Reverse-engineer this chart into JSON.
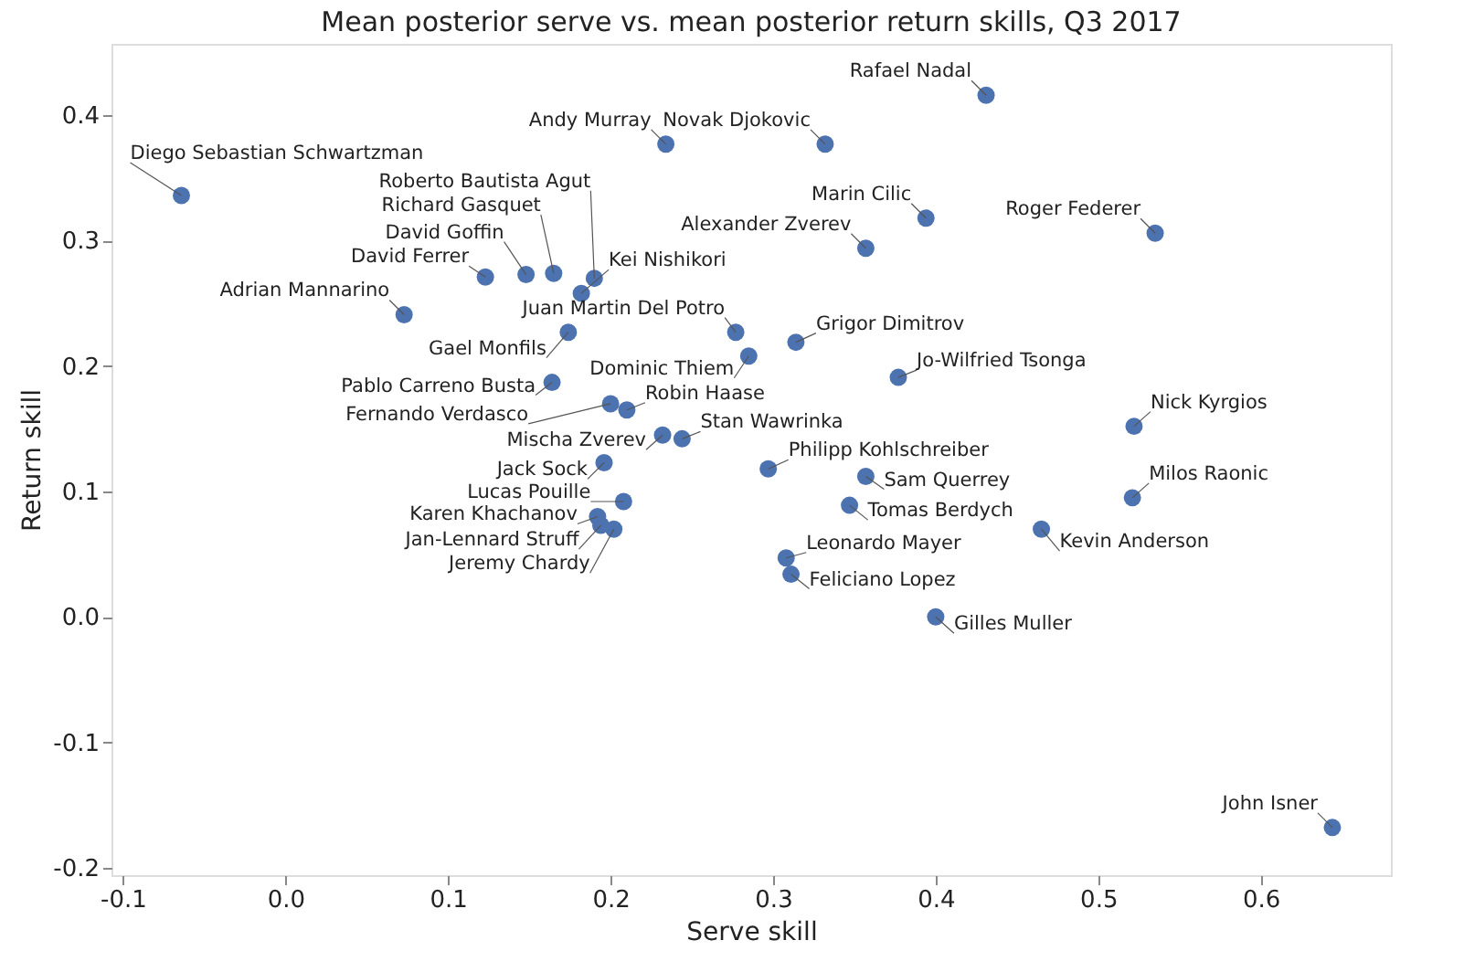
{
  "chart_data": {
    "type": "scatter",
    "title": "Mean posterior serve vs. mean posterior return skills, Q3 2017",
    "xlabel": "Serve skill",
    "ylabel": "Return skill",
    "xlim": [
      -0.107,
      0.68
    ],
    "ylim": [
      -0.206,
      0.457
    ],
    "xticks": [
      -0.1,
      {
        "value": 0,
        "label": "0.0"
      },
      0.1,
      0.2,
      0.3,
      0.4,
      0.5,
      0.6
    ],
    "yticks": [
      -0.2,
      -0.1,
      {
        "value": 0,
        "label": "0.0"
      },
      0.1,
      0.2,
      0.3,
      0.4
    ],
    "grid": false,
    "marker": "circle",
    "series": [
      {
        "color": "#4c72b0",
        "x": [
          0.431,
          0.234,
          0.332,
          -0.064,
          0.394,
          0.535,
          0.357,
          0.073,
          0.174,
          0.377,
          0.522,
          0.521,
          0.465,
          0.357,
          0.347,
          0.644,
          0.4,
          0.308,
          0.311,
          0.123,
          0.148,
          0.165,
          0.19,
          0.182,
          0.277,
          0.314,
          0.285,
          0.164,
          0.2,
          0.21,
          0.297,
          0.232,
          0.196,
          0.244,
          0.192,
          0.202,
          0.208,
          0.194
        ],
        "values": [
          0.416,
          0.377,
          0.377,
          0.336,
          0.318,
          0.306,
          0.294,
          0.241,
          0.227,
          0.191,
          0.152,
          0.095,
          0.07,
          0.112,
          0.089,
          -0.168,
          0.0,
          0.047,
          0.034,
          0.271,
          0.273,
          0.274,
          0.27,
          0.258,
          0.227,
          0.219,
          0.208,
          0.187,
          0.17,
          0.165,
          0.118,
          0.145,
          0.123,
          0.142,
          0.08,
          0.07,
          0.092,
          0.073
        ]
      }
    ],
    "annotations": [
      {
        "text": "Rafael Nadal",
        "x": 0.431,
        "y": 0.416
      },
      {
        "text": "Andy Murray",
        "x": 0.234,
        "y": 0.377
      },
      {
        "text": "Novak Djokovic",
        "x": 0.332,
        "y": 0.377
      },
      {
        "text": "Diego Sebastian Schwartzman",
        "x": -0.064,
        "y": 0.336
      },
      {
        "text": "Marin Cilic",
        "x": 0.394,
        "y": 0.318
      },
      {
        "text": "Roger Federer",
        "x": 0.535,
        "y": 0.306
      },
      {
        "text": "Alexander Zverev",
        "x": 0.357,
        "y": 0.294
      },
      {
        "text": "Adrian Mannarino",
        "x": 0.073,
        "y": 0.241
      },
      {
        "text": "Gael Monfils",
        "x": 0.174,
        "y": 0.227
      },
      {
        "text": "Jo-Wilfried Tsonga",
        "x": 0.377,
        "y": 0.191
      },
      {
        "text": "Nick Kyrgios",
        "x": 0.522,
        "y": 0.152
      },
      {
        "text": "Milos Raonic",
        "x": 0.521,
        "y": 0.095
      },
      {
        "text": "Kevin Anderson",
        "x": 0.465,
        "y": 0.07
      },
      {
        "text": "Sam Querrey",
        "x": 0.357,
        "y": 0.112
      },
      {
        "text": "Tomas Berdych",
        "x": 0.347,
        "y": 0.089
      },
      {
        "text": "John Isner",
        "x": 0.644,
        "y": -0.168
      },
      {
        "text": "Gilles Muller",
        "x": 0.4,
        "y": 0.0
      },
      {
        "text": "Leonardo Mayer",
        "x": 0.308,
        "y": 0.047
      },
      {
        "text": "Feliciano Lopez",
        "x": 0.311,
        "y": 0.034
      },
      {
        "text": "David Ferrer",
        "x": 0.123,
        "y": 0.271
      },
      {
        "text": "David Goffin",
        "x": 0.148,
        "y": 0.273
      },
      {
        "text": "Richard Gasquet",
        "x": 0.165,
        "y": 0.274
      },
      {
        "text": "Roberto Bautista Agut",
        "x": 0.19,
        "y": 0.27
      },
      {
        "text": "Kei Nishikori",
        "x": 0.182,
        "y": 0.258
      },
      {
        "text": "Juan Martin Del Potro",
        "x": 0.277,
        "y": 0.227
      },
      {
        "text": "Grigor Dimitrov",
        "x": 0.314,
        "y": 0.219
      },
      {
        "text": "Dominic Thiem",
        "x": 0.285,
        "y": 0.208
      },
      {
        "text": "Pablo Carreno Busta",
        "x": 0.164,
        "y": 0.187
      },
      {
        "text": "Fernando Verdasco",
        "x": 0.2,
        "y": 0.17
      },
      {
        "text": "Robin Haase",
        "x": 0.21,
        "y": 0.165
      },
      {
        "text": "Philipp Kohlschreiber",
        "x": 0.297,
        "y": 0.118
      },
      {
        "text": "Mischa Zverev",
        "x": 0.232,
        "y": 0.145
      },
      {
        "text": "Jack Sock",
        "x": 0.196,
        "y": 0.123
      },
      {
        "text": "Stan Wawrinka",
        "x": 0.244,
        "y": 0.142
      },
      {
        "text": "Karen Khachanov",
        "x": 0.192,
        "y": 0.08
      },
      {
        "text": "Jeremy Chardy",
        "x": 0.202,
        "y": 0.07
      },
      {
        "text": "Lucas Pouille",
        "x": 0.208,
        "y": 0.092
      },
      {
        "text": "Jan-Lennard Struff",
        "x": 0.194,
        "y": 0.073
      }
    ]
  }
}
